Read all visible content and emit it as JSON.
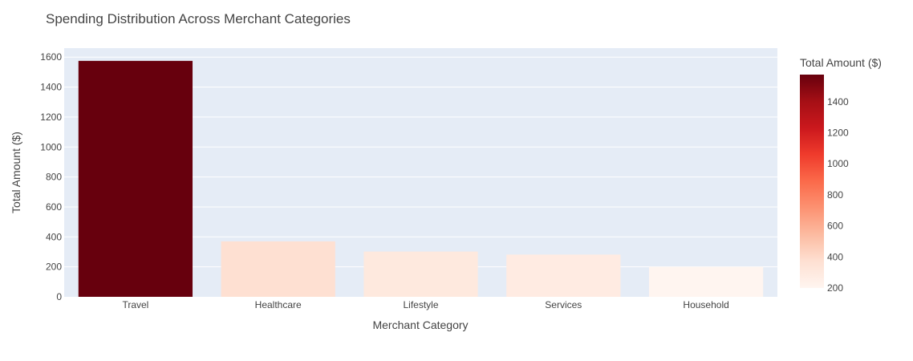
{
  "chart_data": {
    "type": "bar",
    "title": "Spending Distribution Across Merchant Categories",
    "xlabel": "Merchant Category",
    "ylabel": "Total Amount ($)",
    "categories": [
      "Travel",
      "Healthcare",
      "Lifestyle",
      "Services",
      "Household"
    ],
    "values": [
      1575,
      370,
      302,
      282,
      200
    ],
    "ylim": [
      0,
      1660
    ],
    "y_ticks": [
      0,
      200,
      400,
      600,
      800,
      1000,
      1200,
      1400,
      1600
    ],
    "grid": true,
    "colorbar": {
      "title": "Total Amount ($)",
      "colorscale": "Reds",
      "range": [
        200,
        1575
      ],
      "ticks": [
        200,
        400,
        600,
        800,
        1000,
        1200,
        1400
      ]
    },
    "colors": {
      "plot_bg": "#e5ecf6",
      "grid": "#ffffff",
      "text": "#444444"
    }
  }
}
